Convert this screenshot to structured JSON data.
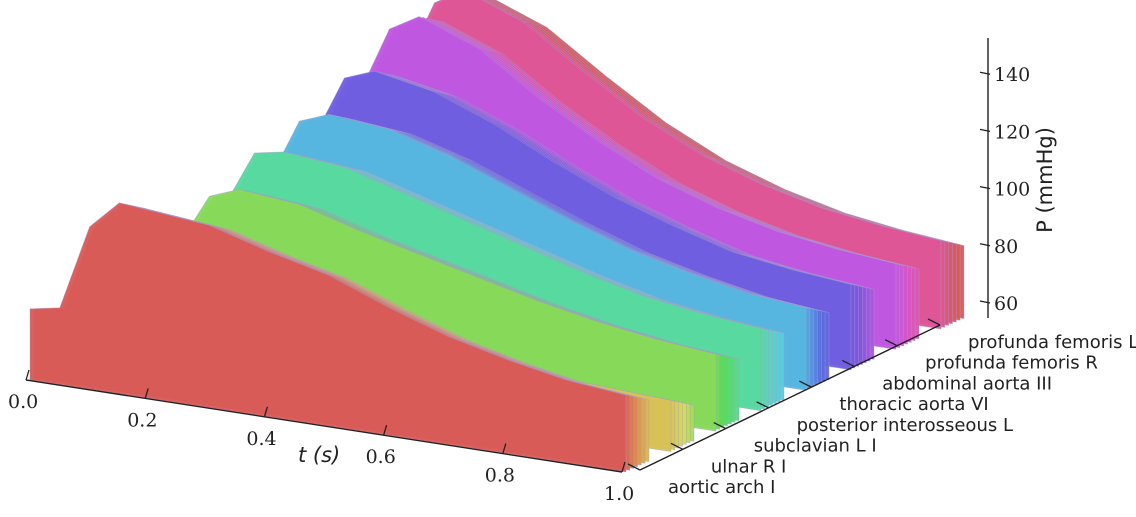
{
  "chart_data": {
    "type": "area",
    "title": "",
    "xlabel": "t (s)",
    "ylabel": "P (mmHg)",
    "xlim": [
      0.0,
      1.0
    ],
    "zlim": [
      55,
      152
    ],
    "x_ticks": [
      "0.0",
      "0.2",
      "0.4",
      "0.6",
      "0.8",
      "1.0"
    ],
    "z_ticks": [
      "60",
      "80",
      "100",
      "120",
      "140"
    ],
    "z_tick_values": [
      60,
      80,
      100,
      120,
      140
    ],
    "y_ticks": [
      "aortic arch I",
      "ulnar R I",
      "subclavian L I",
      "posterior interosseous L",
      "thoracic aorta VI",
      "abdominal aorta III",
      "profunda femoris R",
      "profunda femoris L"
    ],
    "colormap": [
      "#d95b57",
      "#d9b555",
      "#d4dc58",
      "#5bd95b",
      "#57d9a3",
      "#55cfe0",
      "#5a6de0",
      "#7f55e0",
      "#c857e0",
      "#e055a8",
      "#d95b57"
    ],
    "edge_color": "#a89bd0",
    "series": [
      {
        "vessel_index": 0,
        "t": [
          0.0,
          0.05,
          0.1,
          0.15,
          0.2,
          0.3,
          0.4,
          0.5,
          0.6,
          0.7,
          0.8,
          0.9,
          1.0
        ],
        "P": [
          80,
          82,
          112,
          122,
          121,
          119,
          113,
          108,
          100,
          93,
          88,
          84,
          82
        ]
      },
      {
        "vessel_index": 1,
        "t": [
          0.0,
          0.05,
          0.1,
          0.15,
          0.2,
          0.3,
          0.4,
          0.5,
          0.6,
          0.7,
          0.8,
          0.9,
          1.0
        ],
        "P": [
          72,
          73,
          78,
          84,
          88,
          86,
          84,
          82,
          79,
          77,
          75,
          74,
          73
        ]
      },
      {
        "vessel_index": 2,
        "t": [
          0.0,
          0.05,
          0.1,
          0.15,
          0.2,
          0.3,
          0.4,
          0.5,
          0.6,
          0.7,
          0.8,
          0.9,
          1.0
        ],
        "P": [
          74,
          76,
          92,
          110,
          114,
          112,
          106,
          101,
          96,
          91,
          87,
          84,
          82
        ]
      },
      {
        "vessel_index": 3,
        "t": [
          0.0,
          0.05,
          0.1,
          0.15,
          0.2,
          0.3,
          0.4,
          0.5,
          0.6,
          0.7,
          0.8,
          0.9,
          1.0
        ],
        "P": [
          76,
          78,
          98,
          118,
          120,
          118,
          112,
          106,
          100,
          94,
          89,
          86,
          84
        ]
      },
      {
        "vessel_index": 4,
        "t": [
          0.0,
          0.05,
          0.1,
          0.15,
          0.2,
          0.3,
          0.4,
          0.5,
          0.6,
          0.7,
          0.8,
          0.9,
          1.0
        ],
        "P": [
          80,
          82,
          100,
          122,
          126,
          124,
          118,
          110,
          102,
          95,
          90,
          86,
          84
        ]
      },
      {
        "vessel_index": 5,
        "t": [
          0.0,
          0.05,
          0.1,
          0.15,
          0.2,
          0.3,
          0.4,
          0.5,
          0.6,
          0.7,
          0.8,
          0.9,
          1.0
        ],
        "P": [
          82,
          84,
          108,
          130,
          134,
          130,
          122,
          112,
          103,
          96,
          90,
          87,
          85
        ]
      },
      {
        "vessel_index": 6,
        "t": [
          0.0,
          0.05,
          0.1,
          0.15,
          0.2,
          0.3,
          0.4,
          0.5,
          0.6,
          0.7,
          0.8,
          0.9,
          1.0
        ],
        "P": [
          84,
          86,
          116,
          140,
          146,
          138,
          124,
          112,
          102,
          95,
          90,
          87,
          85
        ]
      },
      {
        "vessel_index": 7,
        "t": [
          0.0,
          0.05,
          0.1,
          0.15,
          0.2,
          0.3,
          0.4,
          0.5,
          0.6,
          0.7,
          0.8,
          0.9,
          1.0
        ],
        "P": [
          85,
          87,
          118,
          142,
          148,
          140,
          126,
          113,
          103,
          96,
          91,
          88,
          86
        ]
      }
    ]
  }
}
